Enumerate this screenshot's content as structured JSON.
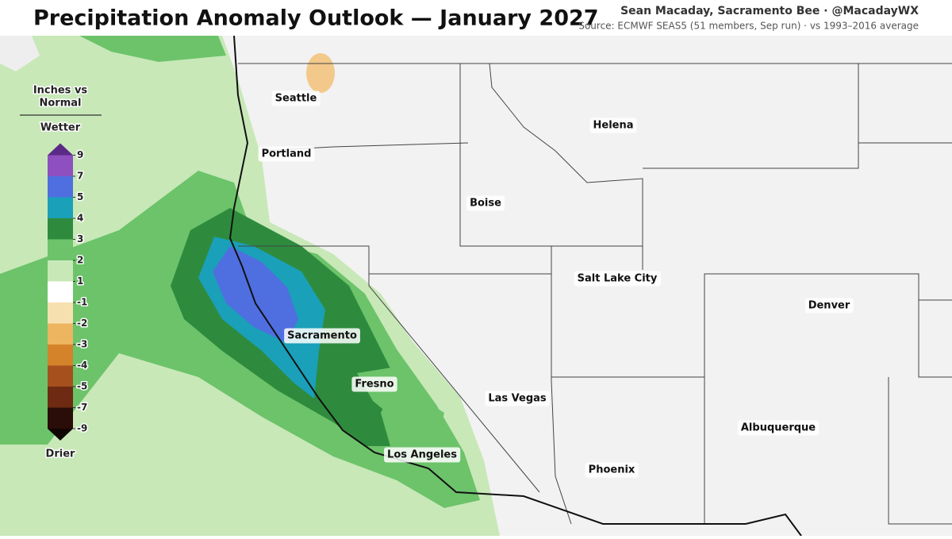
{
  "header": {
    "title": "Precipitation Anomaly Outlook — January 2027",
    "credit": "Sean Macaday, Sacramento Bee · @MacadayWX",
    "source": "Source: ECMWF SEAS5 (51 members, Sep run) · vs 1993–2016 average"
  },
  "legend": {
    "title_lines": [
      "Inches vs",
      "Normal"
    ],
    "wetter": "Wetter",
    "drier": "Drier",
    "ticks": [
      9,
      7,
      5,
      4,
      3,
      2,
      1,
      -1,
      -2,
      -3,
      -4,
      -5,
      -7,
      -9
    ],
    "colors": [
      "#5b2a86",
      "#8e4fbf",
      "#4f6fe0",
      "#1aa0b8",
      "#2e8b3e",
      "#6cc36a",
      "#c8e8b8",
      "#ffffff",
      "#f7e0b0",
      "#edb560",
      "#d4832a",
      "#a6501e",
      "#6e2a12",
      "#2a0c08",
      "#0f0503"
    ]
  },
  "cities": [
    {
      "label": "Seattle"
    },
    {
      "label": "Portland"
    },
    {
      "label": "Helena"
    },
    {
      "label": "Boise"
    },
    {
      "label": "Salt Lake City"
    },
    {
      "label": "Denver"
    },
    {
      "label": "Sacramento"
    },
    {
      "label": "Fresno"
    },
    {
      "label": "Las Vegas"
    },
    {
      "label": "Los Angeles"
    },
    {
      "label": "Phoenix"
    },
    {
      "label": "Albuquerque"
    }
  ]
}
